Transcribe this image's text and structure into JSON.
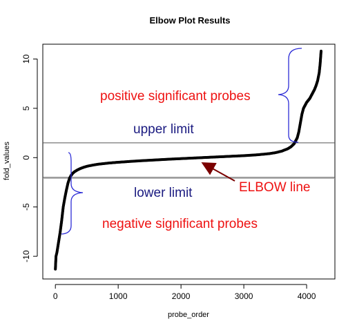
{
  "chart_data": {
    "type": "scatter",
    "title": "Elbow Plot Results",
    "xlabel": "probe_order",
    "ylabel": "fold_values",
    "xlim": [
      -200,
      4450
    ],
    "ylim": [
      -12.3,
      11.5
    ],
    "xticks": [
      0,
      1000,
      2000,
      3000,
      4000
    ],
    "yticks": [
      -10,
      -5,
      0,
      5,
      10
    ],
    "xtick_labels": [
      "0",
      "1000",
      "2000",
      "3000",
      "4000"
    ],
    "ytick_labels": [
      "-10",
      "-5",
      "0",
      "5",
      "10"
    ],
    "grid": false,
    "series": [
      {
        "color": "#000000",
        "x": [
          0,
          10,
          25,
          50,
          75,
          100,
          125,
          150,
          175,
          200,
          225,
          250,
          275,
          300,
          350,
          400,
          450,
          500,
          600,
          700,
          800,
          900,
          1000,
          1200,
          1400,
          1600,
          1800,
          2000,
          2200,
          2400,
          2600,
          2800,
          3000,
          3200,
          3400,
          3500,
          3600,
          3700,
          3750,
          3800,
          3850,
          3875,
          3900,
          3925,
          3950,
          3975,
          4000,
          4025,
          4050,
          4075,
          4100,
          4125,
          4150,
          4175,
          4200,
          4215,
          4230
        ],
        "y": [
          -11.3,
          -10.0,
          -9.6,
          -8.6,
          -7.6,
          -6.4,
          -5.0,
          -4.1,
          -3.3,
          -2.6,
          -2.1,
          -1.8,
          -1.6,
          -1.45,
          -1.25,
          -1.1,
          -0.98,
          -0.88,
          -0.75,
          -0.65,
          -0.58,
          -0.52,
          -0.47,
          -0.38,
          -0.3,
          -0.23,
          -0.16,
          -0.1,
          -0.04,
          0.02,
          0.08,
          0.14,
          0.2,
          0.28,
          0.4,
          0.5,
          0.65,
          0.9,
          1.1,
          1.4,
          2.0,
          2.6,
          3.5,
          4.4,
          5.0,
          5.3,
          5.6,
          5.8,
          6.0,
          6.3,
          6.6,
          6.9,
          7.3,
          7.8,
          8.6,
          9.5,
          10.8
        ]
      }
    ],
    "hlines": [
      {
        "y": 1.5,
        "color": "#555555"
      },
      {
        "y": -2.0,
        "color": "#555555"
      },
      {
        "y": -2.1,
        "color": "#999999"
      }
    ],
    "braces_color": "#2b2bd6",
    "arrow_color": "#7a0000",
    "annotations": {
      "positive": "positive significant probes",
      "negative": "negative significant probes",
      "upper": "upper limit",
      "lower": "lower limit",
      "elbow": "ELBOW line"
    }
  }
}
